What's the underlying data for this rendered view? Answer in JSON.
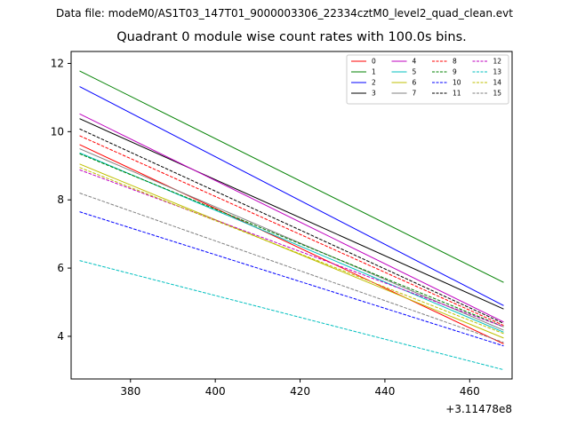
{
  "chart_data": {
    "type": "line",
    "suptitle": "Data file: modeM0/AS1T03_147T01_9000003306_22334cztM0_level2_quad_clean.evt",
    "title": "Quadrant 0 module wise count rates with 100.0s bins.",
    "xlabel": "",
    "ylabel": "",
    "x_offset_label": "+3.11478e8",
    "xlim": [
      366,
      470
    ],
    "ylim": [
      2.75,
      12.35
    ],
    "xticks": [
      380,
      400,
      420,
      440,
      460
    ],
    "yticks": [
      4,
      6,
      8,
      10,
      12
    ],
    "x": [
      368,
      468
    ],
    "legend_position": "upper right",
    "legend_columns": 4,
    "series": [
      {
        "name": "0",
        "color": "#ff0000",
        "style": "solid",
        "values": [
          9.62,
          3.78
        ]
      },
      {
        "name": "1",
        "color": "#008000",
        "style": "solid",
        "values": [
          11.78,
          5.58
        ]
      },
      {
        "name": "2",
        "color": "#0000ff",
        "style": "solid",
        "values": [
          11.32,
          4.9
        ]
      },
      {
        "name": "3",
        "color": "#000000",
        "style": "solid",
        "values": [
          10.38,
          4.8
        ]
      },
      {
        "name": "4",
        "color": "#bf00bf",
        "style": "solid",
        "values": [
          10.52,
          4.42
        ]
      },
      {
        "name": "5",
        "color": "#00bfbf",
        "style": "solid",
        "values": [
          9.38,
          4.12
        ]
      },
      {
        "name": "6",
        "color": "#bfbf00",
        "style": "solid",
        "values": [
          9.05,
          3.95
        ]
      },
      {
        "name": "7",
        "color": "#808080",
        "style": "solid",
        "values": [
          9.5,
          4.18
        ]
      },
      {
        "name": "8",
        "color": "#ff0000",
        "style": "dashed",
        "values": [
          9.88,
          4.32
        ]
      },
      {
        "name": "9",
        "color": "#008000",
        "style": "dashed",
        "values": [
          9.35,
          4.28
        ]
      },
      {
        "name": "10",
        "color": "#0000ff",
        "style": "dashed",
        "values": [
          7.65,
          3.72
        ]
      },
      {
        "name": "11",
        "color": "#000000",
        "style": "dashed",
        "values": [
          10.08,
          4.38
        ]
      },
      {
        "name": "12",
        "color": "#bf00bf",
        "style": "dashed",
        "values": [
          8.88,
          4.28
        ]
      },
      {
        "name": "13",
        "color": "#00bfbf",
        "style": "dashed",
        "values": [
          6.22,
          3.02
        ]
      },
      {
        "name": "14",
        "color": "#bfbf00",
        "style": "dashed",
        "values": [
          8.95,
          4.08
        ]
      },
      {
        "name": "15",
        "color": "#808080",
        "style": "dashed",
        "values": [
          8.2,
          3.82
        ]
      }
    ]
  }
}
